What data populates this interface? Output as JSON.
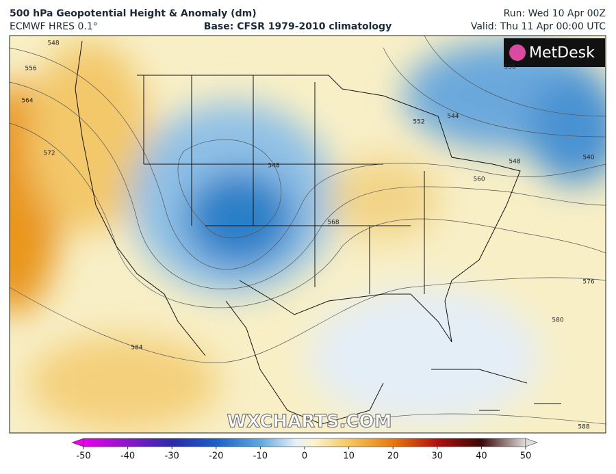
{
  "header": {
    "title": "500 hPa Geopotential Height & Anomaly (dm)",
    "model": "ECMWF HRES 0.1°",
    "base": "Base: CFSR 1979-2010 climatology",
    "run": "Run: Wed 10 Apr 00Z",
    "valid": "Valid: Thu 11 Apr 00:00 UTC"
  },
  "logo": {
    "text": "MetDesk"
  },
  "watermark": {
    "text": "WXCHARTS.COM"
  },
  "map": {
    "contour_labels": [
      548,
      556,
      564,
      572,
      584,
      548,
      552,
      544,
      536,
      548,
      560,
      540,
      568,
      576,
      580,
      588
    ]
  },
  "colorbar": {
    "ticks": [
      -50,
      -40,
      -30,
      -20,
      -10,
      0,
      10,
      20,
      30,
      40,
      50
    ]
  }
}
